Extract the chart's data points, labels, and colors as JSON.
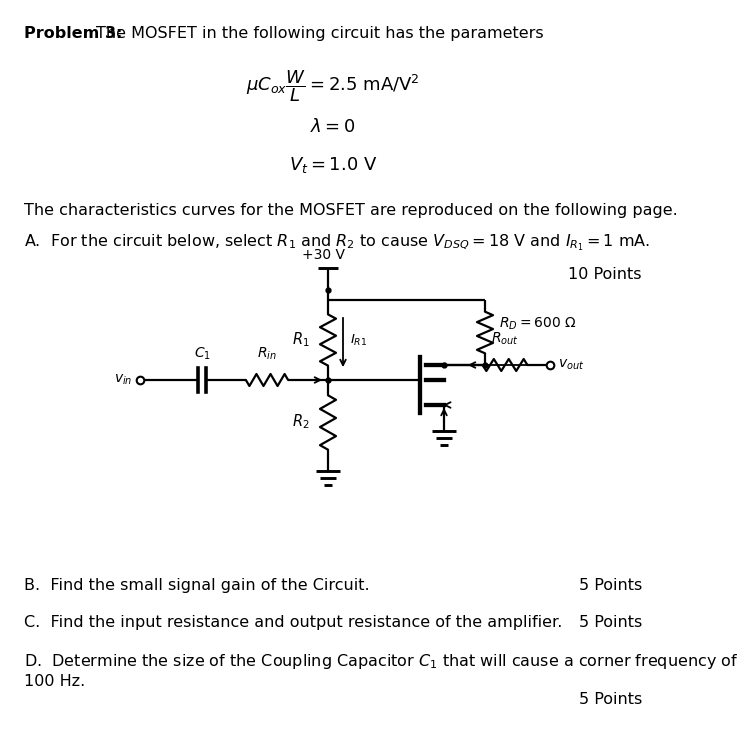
{
  "bg_color": "#ffffff",
  "text_color": "#000000",
  "font_size": 11.5,
  "title_bold": "Problem 3:",
  "title_rest": "  The MOSFET in the following circuit has the parameters",
  "param1": "$\\mu C_{ox}\\dfrac{W}{L} = 2.5\\ \\mathrm{mA/V^2}$",
  "param2": "$\\lambda = 0$",
  "param3": "$V_t = 1.0\\ \\mathrm{V}$",
  "char_text": "The characteristics curves for the MOSFET are reproduced on the following page.",
  "partA": "A.  For the circuit below, select $R_1$ and $R_2$ to cause $V_{DSQ} = 18$ V and $I_{R_1} = 1$ mA.",
  "points_A": "10 Points",
  "partB": "B.  Find the small signal gain of the Circuit.",
  "points_B": "5 Points",
  "partC": "C.  Find the input resistance and output resistance of the amplifier.",
  "points_C": "5 Points",
  "partD_line1": "D.  Determine the size of the Coupling Capacitor $C_1$ that will cause a corner frequency of",
  "partD_line2": "100 Hz.",
  "points_D": "5 Points"
}
